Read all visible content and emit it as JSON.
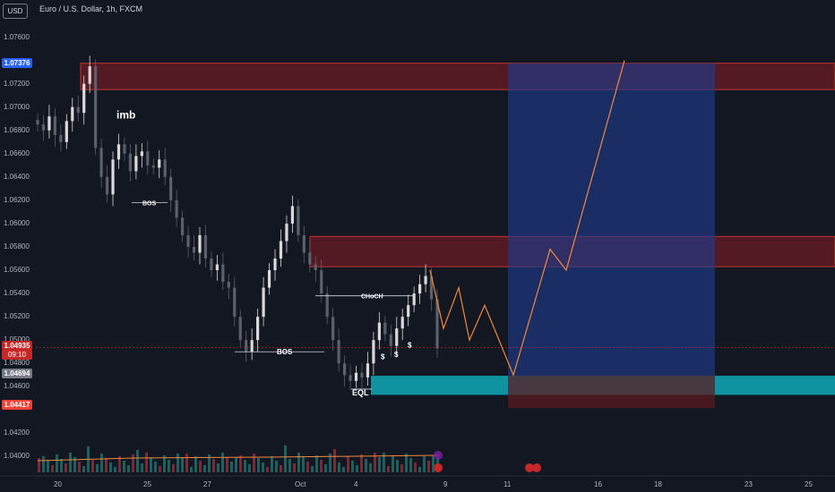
{
  "header": {
    "currency": "USD",
    "title": "Euro / U.S. Dollar, 1h, FXCM"
  },
  "price_tags": {
    "high_level": "1.07376",
    "last_price": "1.04935",
    "countdown": "09:10",
    "mid_level": "1.04694",
    "low_level": "1.04417"
  },
  "chart_data": {
    "type": "candlestick",
    "y_ticks": [
      "1.07600",
      "1.07200",
      "1.07000",
      "1.06800",
      "1.06600",
      "1.06400",
      "1.06200",
      "1.06000",
      "1.05800",
      "1.05600",
      "1.05400",
      "1.05200",
      "1.05000",
      "1.04800",
      "1.04600",
      "1.04200",
      "1.04000"
    ],
    "x_ticks": [
      "20",
      "25",
      "27",
      "Oct",
      "4",
      "9",
      "11",
      "16",
      "18",
      "23",
      "25"
    ],
    "ylim": [
      1.0385,
      1.0775
    ],
    "closes": [
      1.0685,
      1.068,
      1.0692,
      1.0676,
      1.067,
      1.0688,
      1.07,
      1.0695,
      1.072,
      1.0735,
      1.0665,
      1.064,
      1.0625,
      1.0655,
      1.0668,
      1.066,
      1.0645,
      1.0658,
      1.0662,
      1.065,
      1.0648,
      1.0655,
      1.064,
      1.062,
      1.0605,
      1.059,
      1.058,
      1.0575,
      1.059,
      1.057,
      1.056,
      1.0565,
      1.055,
      1.0545,
      1.052,
      1.05,
      1.049,
      1.05,
      1.052,
      1.0545,
      1.056,
      1.057,
      1.0585,
      1.06,
      1.0615,
      1.059,
      1.0575,
      1.0565,
      1.056,
      1.054,
      1.052,
      1.05,
      1.048,
      1.047,
      1.0465,
      1.0472,
      1.0468,
      1.048,
      1.05,
      1.0515,
      1.0505,
      1.0495,
      1.051,
      1.052,
      1.053,
      1.054,
      1.0548,
      1.0555,
      1.0535,
      1.0493
    ],
    "annotations": [
      {
        "text": "imb",
        "price": 1.069
      },
      {
        "text": "BOS",
        "price": 1.0618
      },
      {
        "text": "BOS",
        "price": 1.049
      },
      {
        "text": "CHoCH",
        "price": 1.0538
      },
      {
        "text": "EQL",
        "price": 1.0456
      },
      {
        "text": "$",
        "price": 1.0496
      },
      {
        "text": "$",
        "price": 1.049
      },
      {
        "text": "$",
        "price": 1.0483
      }
    ],
    "zones": [
      {
        "type": "supply",
        "top": 1.07376,
        "bottom": 1.0715,
        "color": "#6b1c24"
      },
      {
        "type": "supply",
        "top": 1.0589,
        "bottom": 1.0563,
        "color": "#6b1c24"
      },
      {
        "type": "demand",
        "top": 1.04694,
        "bottom": 1.0453,
        "color": "#0f9aa8"
      },
      {
        "type": "long_target",
        "top": 1.07376,
        "bottom": 1.04694,
        "color": "#1e3a8a"
      },
      {
        "type": "long_stop",
        "top": 1.04694,
        "bottom": 1.04417,
        "color": "#5b1a22"
      }
    ],
    "projection": [
      {
        "t": 0,
        "p": 1.056
      },
      {
        "t": 1,
        "p": 1.051
      },
      {
        "t": 2,
        "p": 1.0545
      },
      {
        "t": 3,
        "p": 1.05
      },
      {
        "t": 4,
        "p": 1.053
      },
      {
        "t": 5,
        "p": 1.047
      },
      {
        "t": 6,
        "p": 1.0578
      },
      {
        "t": 7,
        "p": 1.056
      },
      {
        "t": 8,
        "p": 1.074
      }
    ]
  },
  "colors": {
    "up": "#d9d9d9",
    "down": "#5d606b",
    "projection": "#f0883e",
    "tag_high": "#2962ff",
    "tag_last": "#d32f2f",
    "tag_mid": "#787b86",
    "tag_low": "#f44336"
  }
}
